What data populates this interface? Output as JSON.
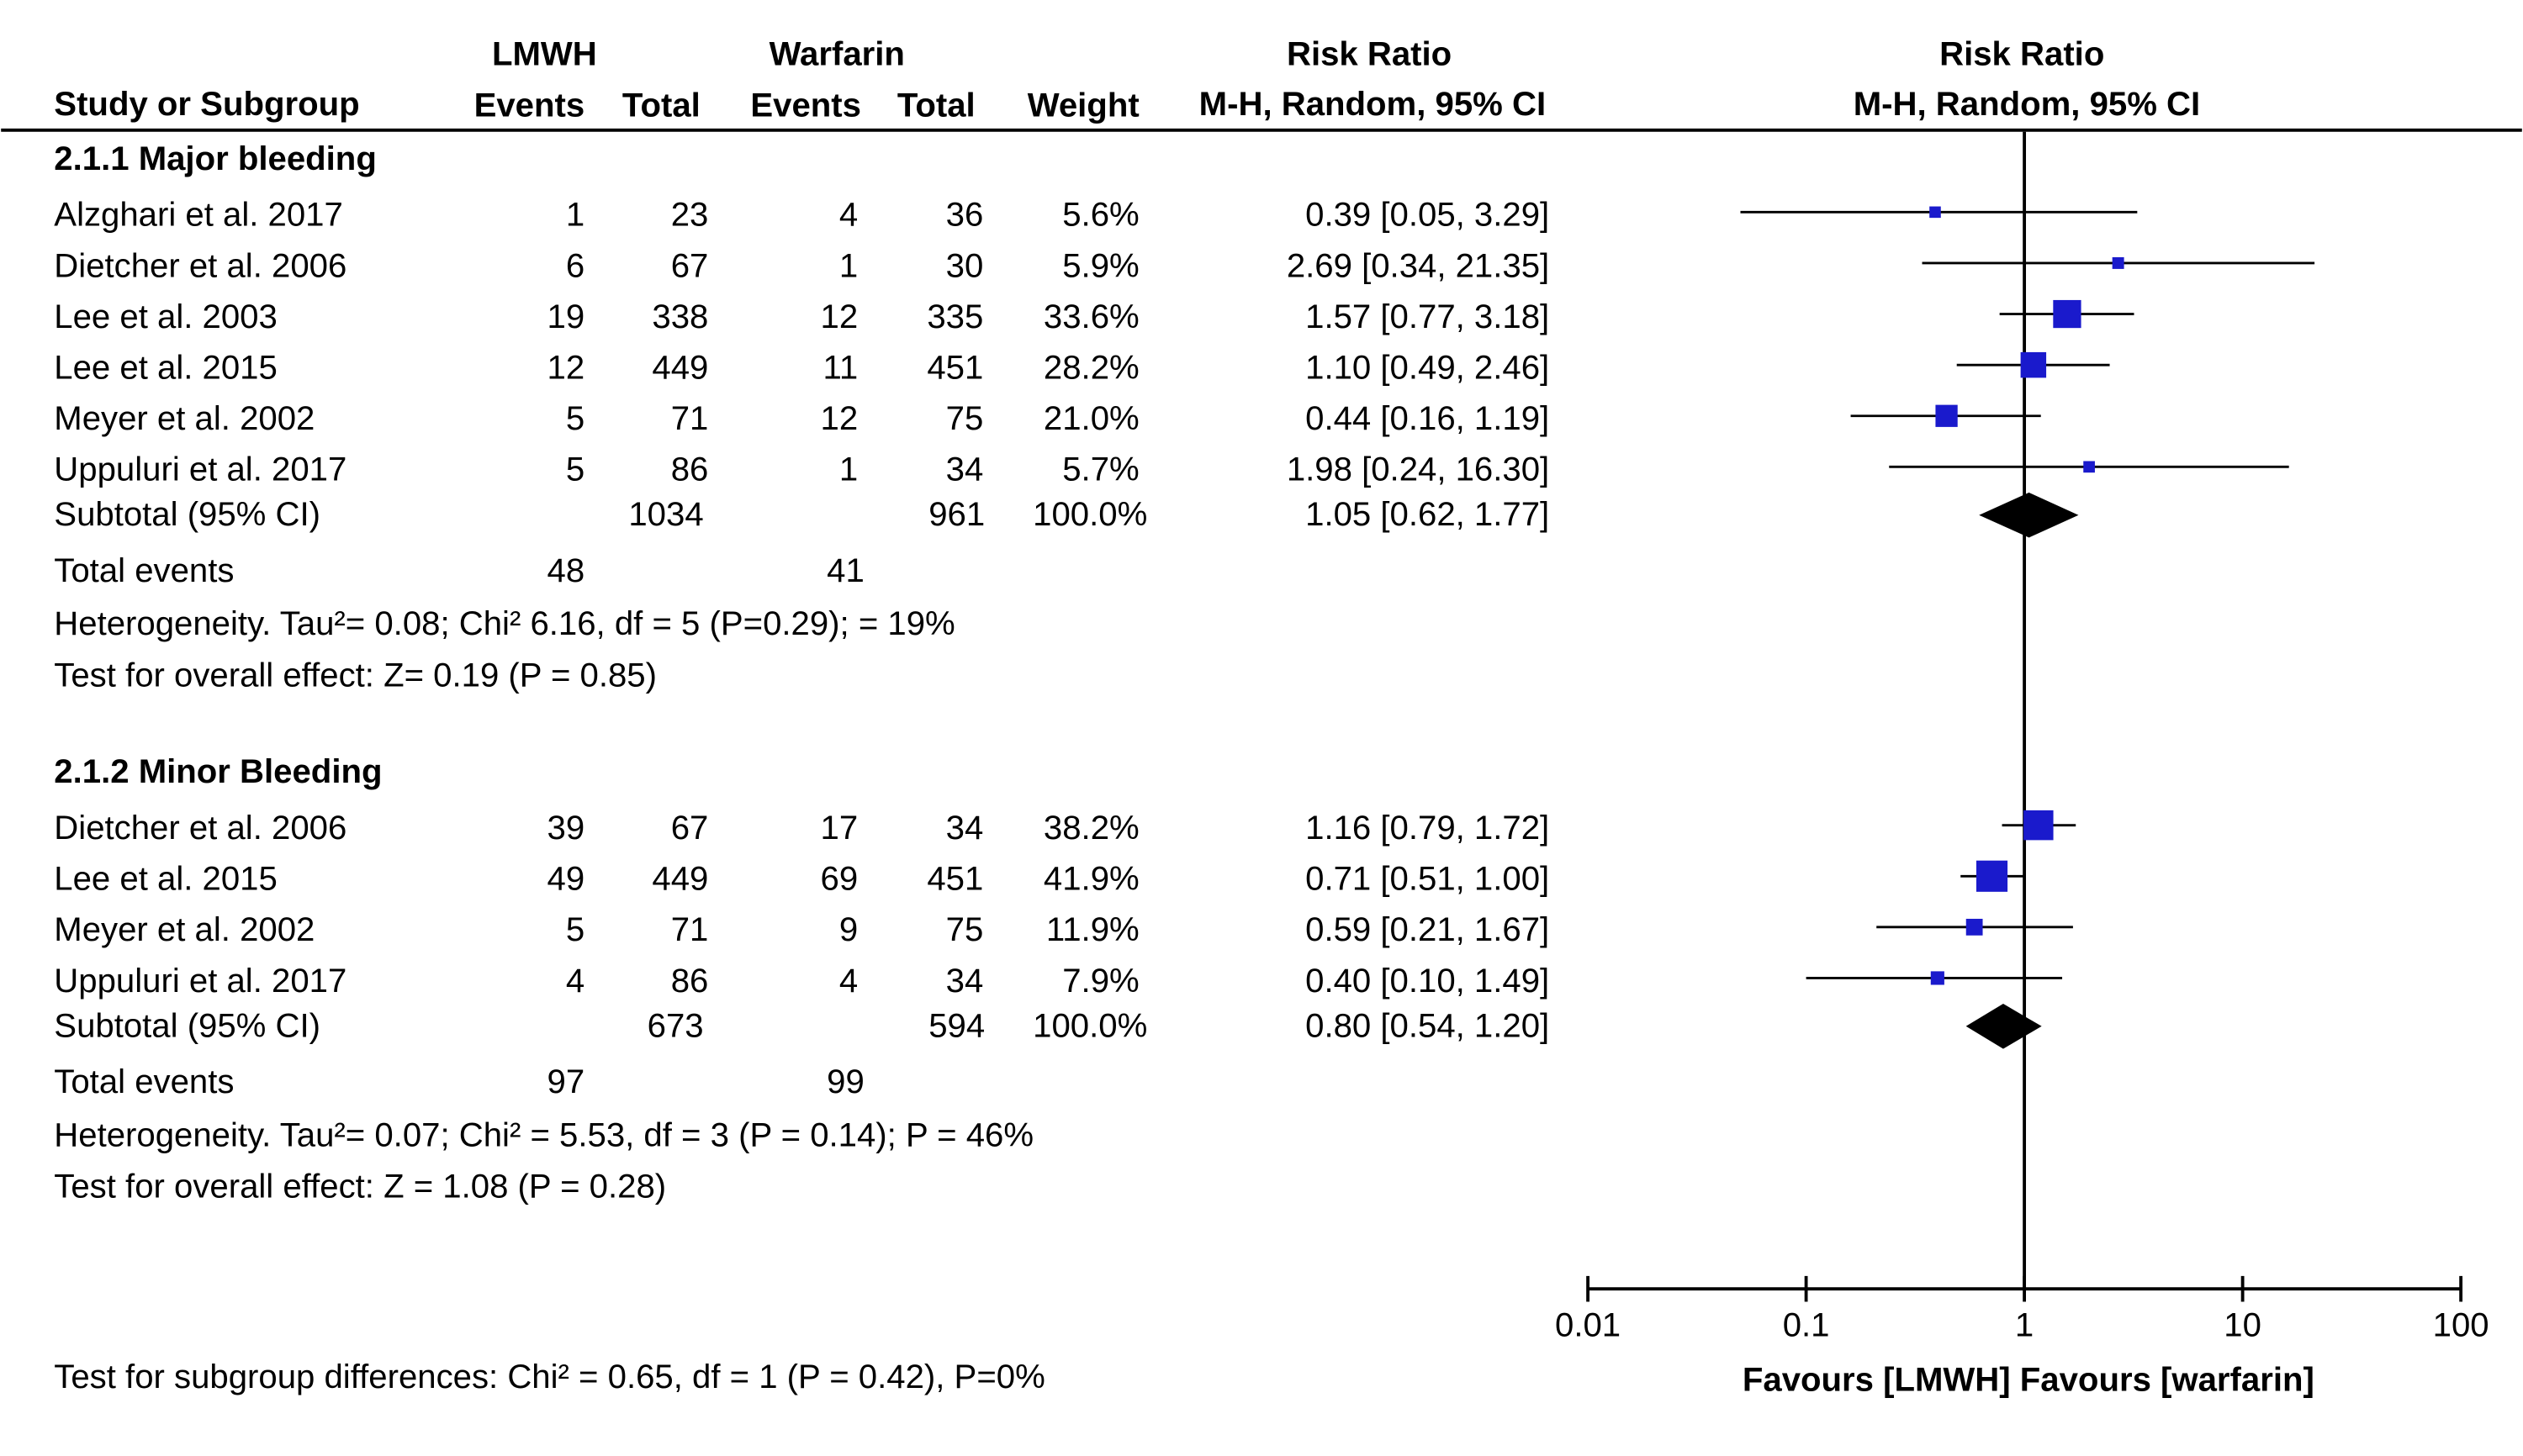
{
  "chart_data": {
    "type": "forest",
    "headers": {
      "study": "Study or Subgroup",
      "lmwh": "LMWH",
      "warfarin": "Warfarin",
      "lmwh_events": "Events",
      "lmwh_total": "Total",
      "warfarin_events": "Events",
      "warfarin_total": "Total",
      "weight": "Weight",
      "rr_title": "Risk Ratio",
      "rr_method": "M-H, Random, 95% CI",
      "plot_title": "Risk Ratio",
      "plot_method": "M-H, Random, 95% CI"
    },
    "groups": [
      {
        "title": "2.1.1 Major bleeding",
        "studies": [
          {
            "name": "Alzghari et al. 2017",
            "lmwh_events": 1,
            "lmwh_total": 23,
            "warfarin_events": 4,
            "warfarin_total": 36,
            "weight": 5.6,
            "weight_label": "5.6%",
            "rr": 0.39,
            "ci_low": 0.05,
            "ci_high": 3.29,
            "rr_label": "0.39 [0.05, 3.29]"
          },
          {
            "name": "Dietcher et al. 2006",
            "lmwh_events": 6,
            "lmwh_total": 67,
            "warfarin_events": 1,
            "warfarin_total": 30,
            "weight": 5.9,
            "weight_label": "5.9%",
            "rr": 2.69,
            "ci_low": 0.34,
            "ci_high": 21.35,
            "rr_label": "2.69 [0.34, 21.35]"
          },
          {
            "name": "Lee et al. 2003",
            "lmwh_events": 19,
            "lmwh_total": 338,
            "warfarin_events": 12,
            "warfarin_total": 335,
            "weight": 33.6,
            "weight_label": "33.6%",
            "rr": 1.57,
            "ci_low": 0.77,
            "ci_high": 3.18,
            "rr_label": "1.57 [0.77, 3.18]"
          },
          {
            "name": "Lee et al. 2015",
            "lmwh_events": 12,
            "lmwh_total": 449,
            "warfarin_events": 11,
            "warfarin_total": 451,
            "weight": 28.2,
            "weight_label": "28.2%",
            "rr": 1.1,
            "ci_low": 0.49,
            "ci_high": 2.46,
            "rr_label": "1.10 [0.49, 2.46]"
          },
          {
            "name": "Meyer et al. 2002",
            "lmwh_events": 5,
            "lmwh_total": 71,
            "warfarin_events": 12,
            "warfarin_total": 75,
            "weight": 21.0,
            "weight_label": "21.0%",
            "rr": 0.44,
            "ci_low": 0.16,
            "ci_high": 1.19,
            "rr_label": "0.44 [0.16, 1.19]"
          },
          {
            "name": "Uppuluri et al. 2017",
            "lmwh_events": 5,
            "lmwh_total": 86,
            "warfarin_events": 1,
            "warfarin_total": 34,
            "weight": 5.7,
            "weight_label": "5.7%",
            "rr": 1.98,
            "ci_low": 0.24,
            "ci_high": 16.3,
            "rr_label": "1.98 [0.24, 16.30]"
          }
        ],
        "subtotal": {
          "name": "Subtotal (95% CI)",
          "lmwh_total": 1034,
          "warfarin_total": 961,
          "weight_label": "100.0%",
          "rr": 1.05,
          "ci_low": 0.62,
          "ci_high": 1.77,
          "rr_label": "1.05 [0.62, 1.77]"
        },
        "total_events": {
          "name": "Total events",
          "lmwh": 48,
          "warfarin": 41
        },
        "heterogeneity": "Heterogeneity. Tau²= 0.08; Chi²  6.16, df = 5 (P=0.29); = 19%",
        "overall_effect": "Test for overall effect: Z= 0.19 (P = 0.85)"
      },
      {
        "title": "2.1.2 Minor Bleeding",
        "studies": [
          {
            "name": "Dietcher et al. 2006",
            "lmwh_events": 39,
            "lmwh_total": 67,
            "warfarin_events": 17,
            "warfarin_total": 34,
            "weight": 38.2,
            "weight_label": "38.2%",
            "rr": 1.16,
            "ci_low": 0.79,
            "ci_high": 1.72,
            "rr_label": "1.16 [0.79, 1.72]"
          },
          {
            "name": "Lee et al. 2015",
            "lmwh_events": 49,
            "lmwh_total": 449,
            "warfarin_events": 69,
            "warfarin_total": 451,
            "weight": 41.9,
            "weight_label": "41.9%",
            "rr": 0.71,
            "ci_low": 0.51,
            "ci_high": 1.0,
            "rr_label": "0.71 [0.51, 1.00]"
          },
          {
            "name": "Meyer et al. 2002",
            "lmwh_events": 5,
            "lmwh_total": 71,
            "warfarin_events": 9,
            "warfarin_total": 75,
            "weight": 11.9,
            "weight_label": "11.9%",
            "rr": 0.59,
            "ci_low": 0.21,
            "ci_high": 1.67,
            "rr_label": "0.59 [0.21, 1.67]"
          },
          {
            "name": "Uppuluri et al. 2017",
            "lmwh_events": 4,
            "lmwh_total": 86,
            "warfarin_events": 4,
            "warfarin_total": 34,
            "weight": 7.9,
            "weight_label": "7.9%",
            "rr": 0.4,
            "ci_low": 0.1,
            "ci_high": 1.49,
            "rr_label": "0.40 [0.10, 1.49]"
          }
        ],
        "subtotal": {
          "name": "Subtotal (95% CI)",
          "lmwh_total": 673,
          "warfarin_total": 594,
          "weight_label": "100.0%",
          "rr": 0.8,
          "ci_low": 0.54,
          "ci_high": 1.2,
          "rr_label": "0.80 [0.54, 1.20]"
        },
        "total_events": {
          "name": "Total events",
          "lmwh": 97,
          "warfarin": 99
        },
        "heterogeneity": "Heterogeneity. Tau²= 0.07; Chi² = 5.53, df = 3 (P = 0.14); P = 46%",
        "overall_effect": "Test for overall effect: Z = 1.08 (P = 0.28)"
      }
    ],
    "subgroup_test": "Test for subgroup differences: Chi² = 0.65, df = 1 (P = 0.42), P=0%",
    "x_label": "Favours [LMWH] Favours [warfarin]",
    "log_x": true,
    "xlim": [
      0.01,
      100
    ],
    "xticks": [
      0.01,
      0.1,
      1,
      10,
      100
    ],
    "marker_color": "#1a1acc",
    "diamond_color": "#000000"
  }
}
